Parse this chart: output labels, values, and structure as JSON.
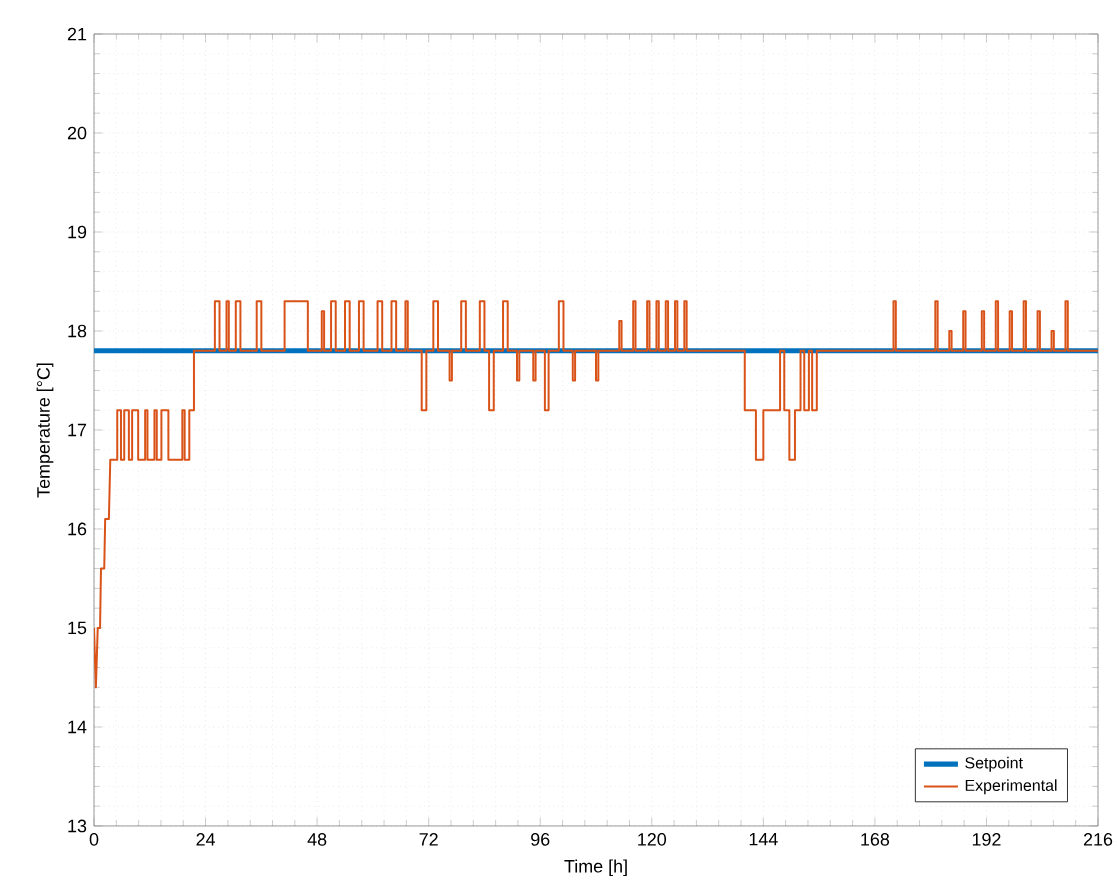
{
  "chart_data": {
    "type": "line",
    "xlabel": "Time [h]",
    "ylabel": "Temperature [°C]",
    "xlim": [
      0,
      216
    ],
    "ylim": [
      13,
      21
    ],
    "xticks": [
      0,
      24,
      48,
      72,
      96,
      120,
      144,
      168,
      192,
      216
    ],
    "yticks": [
      13,
      14,
      15,
      16,
      17,
      18,
      19,
      20,
      21
    ],
    "grid": true,
    "legend": "bottom right",
    "line_style": "solid",
    "marker": "none",
    "series": [
      {
        "name": "Setpoint",
        "color": "#0072bd",
        "x": [
          0,
          216
        ],
        "values": [
          17.8,
          17.8
        ]
      },
      {
        "name": "Experimental",
        "color": "#d95319",
        "x": [
          0,
          0.4,
          0.8,
          1.3,
          1.5,
          2.2,
          2.4,
          3.2,
          3.5,
          5,
          5,
          5.8,
          5.8,
          6.5,
          6.5,
          7.5,
          7.5,
          8.2,
          8.2,
          9.5,
          9.5,
          11,
          11,
          11.5,
          11.5,
          13,
          13,
          13.5,
          13.5,
          14.5,
          14.5,
          16,
          16,
          19,
          19,
          19.5,
          19.5,
          20.5,
          20.5,
          21.5,
          21.5,
          26,
          26,
          27,
          27,
          28.5,
          28.5,
          29,
          29,
          30.5,
          30.5,
          31.5,
          31.5,
          35,
          35,
          36,
          36,
          41,
          41,
          46,
          46,
          49,
          49,
          49.5,
          49.5,
          51,
          51,
          52,
          52,
          54,
          54,
          55,
          55,
          57,
          57,
          58,
          58,
          61,
          61,
          62,
          62,
          64,
          64,
          65,
          65,
          67,
          67,
          67.5,
          67.5,
          70.5,
          70.5,
          71.5,
          71.5,
          73,
          73,
          74,
          74,
          76.5,
          76.5,
          77,
          77,
          79,
          79,
          80,
          80,
          83,
          83,
          84,
          84,
          85,
          85,
          86,
          86,
          88,
          88,
          89,
          89,
          91,
          91,
          91.5,
          91.5,
          94.5,
          94.5,
          95,
          95,
          97,
          97,
          97.8,
          97.8,
          100,
          100,
          101,
          101,
          103,
          103,
          103.5,
          103.5,
          108,
          108,
          108.5,
          108.5,
          113,
          113,
          113.5,
          113.5,
          116,
          116,
          116.5,
          116.5,
          119,
          119,
          119.5,
          119.5,
          121,
          121,
          121.5,
          121.5,
          123,
          123,
          123.5,
          123.5,
          125,
          125,
          125.5,
          125.5,
          127,
          127,
          127.5,
          127.5,
          140,
          140,
          142.4,
          142.4,
          144,
          144,
          147.6,
          147.6,
          148.5,
          148.5,
          149.6,
          149.6,
          150.8,
          150.8,
          152,
          152,
          152.8,
          152.8,
          153.8,
          153.8,
          154.5,
          154.5,
          155.5,
          155.5,
          172,
          172,
          172.5,
          172.5,
          181,
          181,
          181.5,
          181.5,
          184,
          184,
          184.5,
          184.5,
          187,
          187,
          187.5,
          187.5,
          191,
          191,
          191.5,
          191.5,
          194,
          194,
          194.5,
          194.5,
          197,
          197,
          197.5,
          197.5,
          200,
          200,
          200.5,
          200.5,
          203,
          203,
          203.5,
          203.5,
          206,
          206,
          206.5,
          206.5,
          209,
          209,
          209.5,
          209.5,
          216
        ],
        "values": [
          15.0,
          14.4,
          15.0,
          15.0,
          15.6,
          15.6,
          16.1,
          16.1,
          16.7,
          16.7,
          17.2,
          17.2,
          16.7,
          16.7,
          17.2,
          17.2,
          16.7,
          16.7,
          17.2,
          17.2,
          16.7,
          16.7,
          17.2,
          17.2,
          16.7,
          16.7,
          17.2,
          17.2,
          16.7,
          16.7,
          17.2,
          17.2,
          16.7,
          16.7,
          17.2,
          17.2,
          16.7,
          16.7,
          17.2,
          17.2,
          17.8,
          17.8,
          18.3,
          18.3,
          17.8,
          17.8,
          18.3,
          18.3,
          17.8,
          17.8,
          18.3,
          18.3,
          17.8,
          17.8,
          18.3,
          18.3,
          17.8,
          17.8,
          18.3,
          18.3,
          17.8,
          17.8,
          18.2,
          18.2,
          17.8,
          17.8,
          18.3,
          18.3,
          17.8,
          17.8,
          18.3,
          18.3,
          17.8,
          17.8,
          18.3,
          18.3,
          17.8,
          17.8,
          18.3,
          18.3,
          17.8,
          17.8,
          18.3,
          18.3,
          17.8,
          17.8,
          18.3,
          18.3,
          17.8,
          17.8,
          17.2,
          17.2,
          17.8,
          17.8,
          18.3,
          18.3,
          17.8,
          17.8,
          17.5,
          17.5,
          17.8,
          17.8,
          18.3,
          18.3,
          17.8,
          17.8,
          18.3,
          18.3,
          17.8,
          17.8,
          17.2,
          17.2,
          17.8,
          17.8,
          18.3,
          18.3,
          17.8,
          17.8,
          17.5,
          17.5,
          17.8,
          17.8,
          17.5,
          17.5,
          17.8,
          17.8,
          17.2,
          17.2,
          17.8,
          17.8,
          18.3,
          18.3,
          17.8,
          17.8,
          17.5,
          17.5,
          17.8,
          17.8,
          17.5,
          17.5,
          17.8,
          17.8,
          18.1,
          18.1,
          17.8,
          17.8,
          18.3,
          18.3,
          17.8,
          17.8,
          18.3,
          18.3,
          17.8,
          17.8,
          18.3,
          18.3,
          17.8,
          17.8,
          18.3,
          18.3,
          17.8,
          17.8,
          18.3,
          18.3,
          17.8,
          17.8,
          18.3,
          18.3,
          17.8,
          17.8,
          17.2,
          17.2,
          16.7,
          16.7,
          17.2,
          17.2,
          17.8,
          17.8,
          17.2,
          17.2,
          16.7,
          16.7,
          17.2,
          17.2,
          17.8,
          17.8,
          17.2,
          17.2,
          17.8,
          17.8,
          17.2,
          17.2,
          17.8,
          17.8,
          18.3,
          18.3,
          17.8,
          17.8,
          18.3,
          18.3,
          17.8,
          17.8,
          18.0,
          18.0,
          17.8,
          17.8,
          18.2,
          18.2,
          17.8,
          17.8,
          18.2,
          18.2,
          17.8,
          17.8,
          18.3,
          18.3,
          17.8,
          17.8,
          18.2,
          18.2,
          17.8,
          17.8,
          18.3,
          18.3,
          17.8,
          17.8,
          18.2,
          18.2,
          17.8,
          17.8,
          18.0,
          18.0,
          17.8,
          17.8,
          18.3,
          18.3,
          17.8,
          17.8
        ]
      }
    ]
  }
}
